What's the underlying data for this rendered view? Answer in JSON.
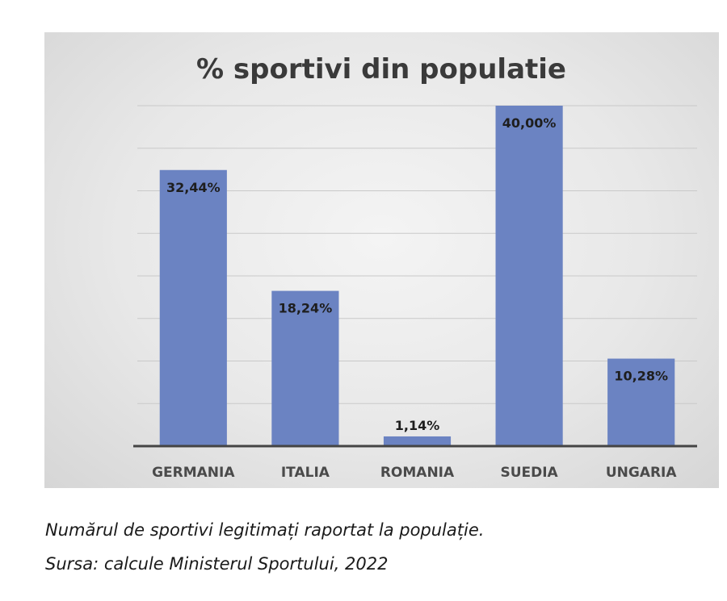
{
  "chart_data": {
    "type": "bar",
    "title": "% sportivi din populatie",
    "categories": [
      "GERMANIA",
      "ITALIA",
      "ROMANIA",
      "SUEDIA",
      "UNGARIA"
    ],
    "values": [
      32.44,
      18.24,
      1.14,
      40.0,
      10.28
    ],
    "data_labels": [
      "32,44%",
      "18,24%",
      "1,14%",
      "40,00%",
      "10,28%"
    ],
    "ylim": [
      0,
      40
    ],
    "grid": true,
    "legend": "none",
    "colors": {
      "bar": "#6b83c2",
      "grid": "#c9c9c9",
      "axis": "#444444"
    }
  },
  "caption": {
    "line1": "Numărul de sportivi legitimați raportat la populație.",
    "line2": "Sursa: calcule Ministerul Sportului, 2022"
  }
}
